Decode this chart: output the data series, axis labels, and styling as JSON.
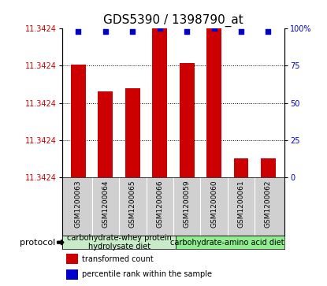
{
  "title": "GDS5390 / 1398790_at",
  "samples": [
    "GSM1200063",
    "GSM1200064",
    "GSM1200065",
    "GSM1200066",
    "GSM1200059",
    "GSM1200060",
    "GSM1200061",
    "GSM1200062"
  ],
  "red_bar_heights": [
    76,
    58,
    60,
    100,
    77,
    100,
    13,
    13
  ],
  "blue_dot_values": [
    98,
    98,
    98,
    100,
    98,
    100,
    98,
    98
  ],
  "y_right_labels": [
    "0",
    "25",
    "50",
    "75",
    "100%"
  ],
  "red_color": "#cc0000",
  "blue_color": "#0000cc",
  "group1_label": "carbohydrate-whey protein\nhydrolysate diet",
  "group2_label": "carbohydrate-amino acid diet",
  "sample_bg_color": "#d0d0d0",
  "group1_bg_color": "#c8ebc8",
  "group2_bg_color": "#90ee90",
  "protocol_label": "protocol",
  "legend_red": "transformed count",
  "legend_blue": "percentile rank within the sample",
  "title_fontsize": 11,
  "tick_fontsize": 7,
  "sample_fontsize": 6.5,
  "group_fontsize": 7,
  "legend_fontsize": 7
}
